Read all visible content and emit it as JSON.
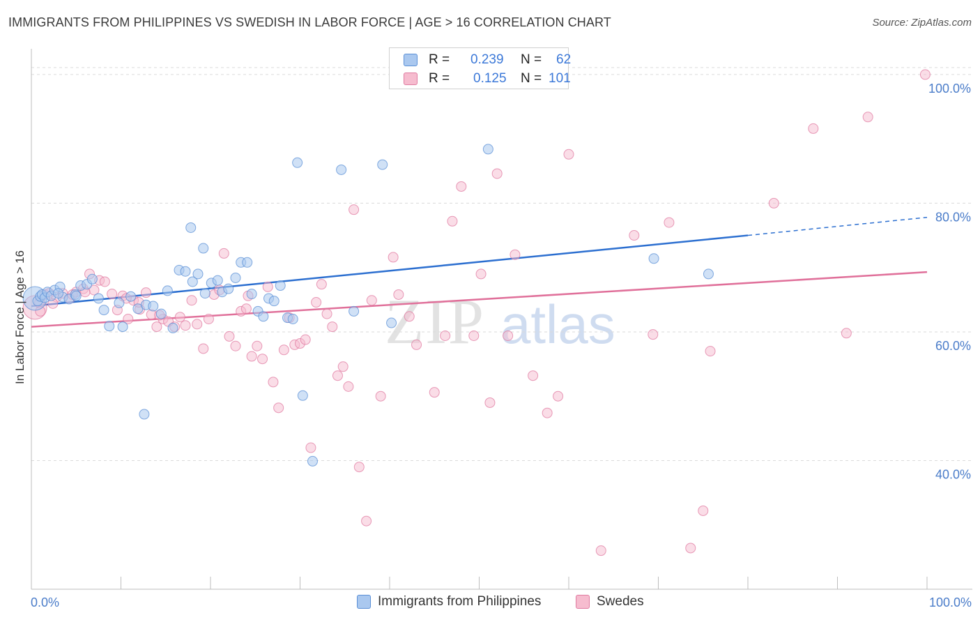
{
  "title": "IMMIGRANTS FROM PHILIPPINES VS SWEDISH IN LABOR FORCE | AGE > 16 CORRELATION CHART",
  "source": "Source: ZipAtlas.com",
  "watermark": {
    "zip": "ZIP",
    "atlas": "atlas"
  },
  "stats": [
    {
      "r_label": "R =",
      "r_value": "0.239",
      "n_label": "N =",
      "n_value": "62"
    },
    {
      "r_label": "R =",
      "r_value": "0.125",
      "n_label": "N =",
      "n_value": "101"
    }
  ],
  "legend": [
    {
      "label": "Immigrants from Philippines"
    },
    {
      "label": "Swedes"
    }
  ],
  "colors": {
    "blue_fill": "#aac8ef",
    "blue_stroke": "#5a8fd6",
    "blue_line": "#2c6fd0",
    "pink_fill": "#f6bccf",
    "pink_stroke": "#e07aa0",
    "pink_line": "#e0709a",
    "grid": "#dadada",
    "tick_text": "#4a7cc9"
  },
  "chart_data": {
    "type": "scatter",
    "title": "IMMIGRANTS FROM PHILIPPINES VS SWEDISH IN LABOR FORCE | AGE > 16 CORRELATION CHART",
    "xlabel": "",
    "ylabel": "In Labor Force | Age > 16",
    "xlim": [
      0,
      100
    ],
    "ylim": [
      20,
      104
    ],
    "x_tick_labels": [
      "0.0%",
      "100.0%"
    ],
    "y_ticks": [
      {
        "value": 40,
        "label": "40.0%"
      },
      {
        "value": 60,
        "label": "60.0%"
      },
      {
        "value": 80,
        "label": "80.0%"
      },
      {
        "value": 100,
        "label": "100.0%"
      }
    ],
    "grid": true,
    "legend_position": "bottom-center",
    "series": [
      {
        "name": "Immigrants from Philippines",
        "color": "#aac8ef",
        "trend": {
          "x": [
            0,
            80
          ],
          "y": [
            64.0,
            75.0
          ],
          "dashed_to_x": 100,
          "dashed_y": 77.8
        },
        "points": [
          [
            0.4,
            65.2
          ],
          [
            0.7,
            64.8
          ],
          [
            1.0,
            65.5
          ],
          [
            1.2,
            65.8
          ],
          [
            1.5,
            65.3
          ],
          [
            1.8,
            66.2
          ],
          [
            2.2,
            65.6
          ],
          [
            2.6,
            66.5
          ],
          [
            3.2,
            67.0
          ],
          [
            3.5,
            65.4
          ],
          [
            4.2,
            65.1
          ],
          [
            4.9,
            65.8
          ],
          [
            5.5,
            67.2
          ],
          [
            6.2,
            67.4
          ],
          [
            6.8,
            68.2
          ],
          [
            7.5,
            65.2
          ],
          [
            8.1,
            63.4
          ],
          [
            8.7,
            60.9
          ],
          [
            10.2,
            60.8
          ],
          [
            11.1,
            65.5
          ],
          [
            11.9,
            63.6
          ],
          [
            12.8,
            64.2
          ],
          [
            13.6,
            64.0
          ],
          [
            14.5,
            62.8
          ],
          [
            15.2,
            66.4
          ],
          [
            15.8,
            60.6
          ],
          [
            16.5,
            69.6
          ],
          [
            17.2,
            69.4
          ],
          [
            18.0,
            67.8
          ],
          [
            18.6,
            69.0
          ],
          [
            19.4,
            66.0
          ],
          [
            20.1,
            67.6
          ],
          [
            20.8,
            68.0
          ],
          [
            21.3,
            66.2
          ],
          [
            22.0,
            66.7
          ],
          [
            22.8,
            68.4
          ],
          [
            23.4,
            70.8
          ],
          [
            24.1,
            70.8
          ],
          [
            24.6,
            65.9
          ],
          [
            25.3,
            63.2
          ],
          [
            25.9,
            62.4
          ],
          [
            26.5,
            65.2
          ],
          [
            27.1,
            64.8
          ],
          [
            27.8,
            67.2
          ],
          [
            28.6,
            62.2
          ],
          [
            29.2,
            62.0
          ],
          [
            29.7,
            86.3
          ],
          [
            30.3,
            50.1
          ],
          [
            31.4,
            39.9
          ],
          [
            34.6,
            85.2
          ],
          [
            36.0,
            63.2
          ],
          [
            39.2,
            86.0
          ],
          [
            40.2,
            61.4
          ],
          [
            12.6,
            47.2
          ],
          [
            17.8,
            76.2
          ],
          [
            19.2,
            73.0
          ],
          [
            51.0,
            88.4
          ],
          [
            69.5,
            71.4
          ],
          [
            75.6,
            69.0
          ],
          [
            9.8,
            64.5
          ],
          [
            3.0,
            66.0
          ],
          [
            5.0,
            65.6
          ]
        ],
        "size": [
          34,
          14,
          14,
          14,
          14,
          14,
          14,
          14,
          14,
          14,
          14,
          14,
          14,
          14,
          14,
          14,
          14,
          14,
          14,
          14,
          14,
          14,
          14,
          14,
          14,
          14,
          14,
          14,
          14,
          14,
          14,
          14,
          14,
          14,
          14,
          14,
          14,
          14,
          14,
          14,
          14,
          14,
          14,
          14,
          14,
          14,
          14,
          14,
          14,
          14,
          14,
          14,
          14,
          14,
          14,
          14,
          14,
          14,
          14,
          14,
          14,
          14
        ]
      },
      {
        "name": "Swedes",
        "color": "#f6bccf",
        "trend": {
          "x": [
            0,
            100
          ],
          "y": [
            60.8,
            69.3
          ]
        },
        "points": [
          [
            0.4,
            63.8
          ],
          [
            0.9,
            64.5
          ],
          [
            1.5,
            65.8
          ],
          [
            2.0,
            66.0
          ],
          [
            2.8,
            65.4
          ],
          [
            3.5,
            66.0
          ],
          [
            4.3,
            65.2
          ],
          [
            5.0,
            66.2
          ],
          [
            5.8,
            66.7
          ],
          [
            6.5,
            69.0
          ],
          [
            7.0,
            66.5
          ],
          [
            7.6,
            68.0
          ],
          [
            8.2,
            67.8
          ],
          [
            9.0,
            65.9
          ],
          [
            9.6,
            63.4
          ],
          [
            10.2,
            65.6
          ],
          [
            10.8,
            62.0
          ],
          [
            11.4,
            64.9
          ],
          [
            12.1,
            63.5
          ],
          [
            12.8,
            66.1
          ],
          [
            13.4,
            62.7
          ],
          [
            14.0,
            60.8
          ],
          [
            14.7,
            62.0
          ],
          [
            15.3,
            61.6
          ],
          [
            16.0,
            60.8
          ],
          [
            16.6,
            62.3
          ],
          [
            17.2,
            61.0
          ],
          [
            17.9,
            64.9
          ],
          [
            18.5,
            61.2
          ],
          [
            19.2,
            57.4
          ],
          [
            19.8,
            62.0
          ],
          [
            20.4,
            65.8
          ],
          [
            21.0,
            66.5
          ],
          [
            21.5,
            72.2
          ],
          [
            22.1,
            59.3
          ],
          [
            22.8,
            57.8
          ],
          [
            23.4,
            63.2
          ],
          [
            24.0,
            63.6
          ],
          [
            24.6,
            56.2
          ],
          [
            25.2,
            57.8
          ],
          [
            25.8,
            55.8
          ],
          [
            26.4,
            67.0
          ],
          [
            27.0,
            52.2
          ],
          [
            27.6,
            48.2
          ],
          [
            28.2,
            57.2
          ],
          [
            28.8,
            62.2
          ],
          [
            29.4,
            58.0
          ],
          [
            30.0,
            58.2
          ],
          [
            30.6,
            58.8
          ],
          [
            31.2,
            42.0
          ],
          [
            31.8,
            64.6
          ],
          [
            32.4,
            67.4
          ],
          [
            33.0,
            62.8
          ],
          [
            33.6,
            60.8
          ],
          [
            34.2,
            53.2
          ],
          [
            34.8,
            54.6
          ],
          [
            35.4,
            51.5
          ],
          [
            36.0,
            79.0
          ],
          [
            36.6,
            39.0
          ],
          [
            37.4,
            30.6
          ],
          [
            38.0,
            64.9
          ],
          [
            39.0,
            50.0
          ],
          [
            40.4,
            71.6
          ],
          [
            41.0,
            65.8
          ],
          [
            42.2,
            62.4
          ],
          [
            43.0,
            58.0
          ],
          [
            43.6,
            100.0
          ],
          [
            45.0,
            50.6
          ],
          [
            46.2,
            59.4
          ],
          [
            47.0,
            77.2
          ],
          [
            48.0,
            82.6
          ],
          [
            49.4,
            59.4
          ],
          [
            50.2,
            69.0
          ],
          [
            51.2,
            49.0
          ],
          [
            52.0,
            84.6
          ],
          [
            53.2,
            59.4
          ],
          [
            54.0,
            72.0
          ],
          [
            56.0,
            53.2
          ],
          [
            57.6,
            47.4
          ],
          [
            58.8,
            50.0
          ],
          [
            60.0,
            87.6
          ],
          [
            63.6,
            26.0
          ],
          [
            67.3,
            75.0
          ],
          [
            69.4,
            59.6
          ],
          [
            71.2,
            77.0
          ],
          [
            73.6,
            26.4
          ],
          [
            75.0,
            32.2
          ],
          [
            75.8,
            57.0
          ],
          [
            82.9,
            80.0
          ],
          [
            87.3,
            91.6
          ],
          [
            91.0,
            59.8
          ],
          [
            93.4,
            93.4
          ],
          [
            99.8,
            100.0
          ],
          [
            12.0,
            64.6
          ],
          [
            4.6,
            65.8
          ],
          [
            6.0,
            66.2
          ],
          [
            1.0,
            63.2
          ],
          [
            10.6,
            65.2
          ],
          [
            24.2,
            65.6
          ],
          [
            2.4,
            64.4
          ],
          [
            14.3,
            62.6
          ]
        ],
        "size": [
          34,
          14,
          14,
          14,
          14,
          14,
          14,
          14,
          14,
          14,
          14,
          14,
          14,
          14,
          14,
          14,
          14,
          14,
          14,
          14,
          14,
          14,
          14,
          14,
          14,
          14,
          14,
          14,
          14,
          14,
          14,
          14,
          14,
          14,
          14,
          14,
          14,
          14,
          14,
          14,
          14,
          14,
          14,
          14,
          14,
          14,
          14,
          14,
          14,
          14,
          14,
          14,
          14,
          14,
          14,
          14,
          14,
          14,
          14,
          14,
          14,
          14,
          14,
          14,
          14,
          14,
          14,
          14,
          14,
          14,
          14,
          14,
          14,
          14,
          14,
          14,
          14,
          14,
          14,
          14,
          14,
          14,
          14,
          14,
          14,
          14,
          14,
          14,
          14,
          14,
          14,
          14,
          14,
          14,
          14,
          14,
          14,
          14,
          14,
          14,
          14
        ]
      }
    ]
  }
}
